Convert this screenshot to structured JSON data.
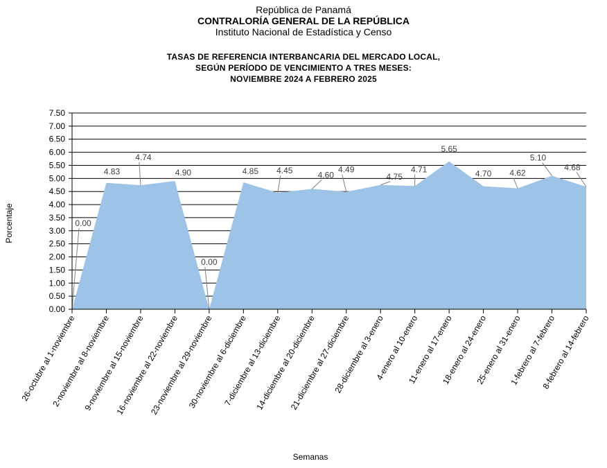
{
  "header": {
    "country": "República de Panamá",
    "organization": "CONTRALORÍA GENERAL DE LA REPÚBLICA",
    "institute": "Instituto Nacional de Estadística y Censo"
  },
  "chart_data": {
    "type": "area",
    "title_lines": [
      "TASAS DE REFERENCIA  INTERBANCARIA  DEL MERCADO LOCAL,",
      "SEGÚN PERÍODO DE VENCIMIENTO  A TRES MESES:",
      "NOVIEMBRE  2024  A FEBRERO  2025"
    ],
    "xlabel": "Semanas",
    "ylabel": "Porcentaje",
    "ylim": [
      0,
      7.5
    ],
    "yticks": [
      "0.00",
      "0.50",
      "1.00",
      "1.50",
      "2.00",
      "2.50",
      "3.00",
      "3.50",
      "4.00",
      "4.50",
      "5.00",
      "5.50",
      "6.00",
      "6.50",
      "7.00",
      "7.50"
    ],
    "grid": true,
    "fill_color": "#9dc3e6",
    "categories": [
      "26-octubre al 1-noviembre",
      "2-noviembre al 8-noviembre",
      "9-noviembre al 15-noviembre",
      "16-noviembre al 22-noviembre",
      "23-noviembre al 29-noviembre",
      "30-noviembre al 6-diciembre",
      "7-diciembre al 13-diciembre",
      "14-diciembre al 20-diciembre",
      "21-diciembre al 27-diciembre",
      "28-diciembre al 3-enero",
      "4-enero al 10-enero",
      "11-enero al 17-enero",
      "18-enero al 24-enero",
      "25-enero al 31-enero",
      "1-febrero al 7-febrero",
      "8-febrero al 14-febrero"
    ],
    "values": [
      0.0,
      4.83,
      4.74,
      4.9,
      0.0,
      4.85,
      4.45,
      4.6,
      4.49,
      4.75,
      4.71,
      5.65,
      4.7,
      4.62,
      5.1,
      4.68
    ],
    "value_labels": [
      "0.00",
      "4.83",
      "4.74",
      "4.90",
      "0.00",
      "4.85",
      "4.45",
      "4.60",
      "4.49",
      "4.75",
      "4.71",
      "5.65",
      "4.70",
      "4.62",
      "5.10",
      "4.68"
    ]
  }
}
